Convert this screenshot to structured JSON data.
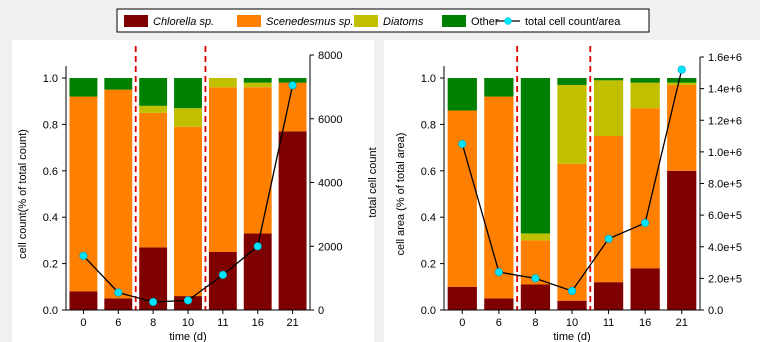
{
  "legend": [
    {
      "label": "Chlorella sp.",
      "color": "#7f0000",
      "italic": true,
      "kind": "box"
    },
    {
      "label": "Scenedesmus sp.",
      "color": "#ff8000",
      "italic": true,
      "kind": "box"
    },
    {
      "label": "Diatoms",
      "color": "#c0c000",
      "italic": true,
      "kind": "box"
    },
    {
      "label": "Other",
      "color": "#008000",
      "italic": false,
      "kind": "box"
    },
    {
      "label": "total cell count/area",
      "color": "#00e5ff",
      "italic": false,
      "kind": "line"
    }
  ],
  "chart_data": [
    {
      "type": "bar",
      "stacked": true,
      "categories": [
        "0",
        "6",
        "8",
        "10",
        "11",
        "16",
        "21"
      ],
      "xlabel": "time (d)",
      "ylabel": "cell count(% of total count)",
      "ylim": [
        0,
        1.0
      ],
      "yticks": [
        "0.0",
        "0.2",
        "0.4",
        "0.6",
        "0.8",
        "1.0"
      ],
      "series": [
        {
          "name": "Chlorella sp.",
          "color": "#7f0000",
          "values": [
            0.08,
            0.05,
            0.27,
            0.06,
            0.25,
            0.33,
            0.77
          ]
        },
        {
          "name": "Scenedesmus sp.",
          "color": "#ff8000",
          "values": [
            0.84,
            0.9,
            0.58,
            0.73,
            0.71,
            0.63,
            0.21
          ]
        },
        {
          "name": "Diatoms",
          "color": "#c0c000",
          "values": [
            0.0,
            0.0,
            0.03,
            0.08,
            0.04,
            0.02,
            0.0
          ]
        },
        {
          "name": "Other",
          "color": "#008000",
          "values": [
            0.08,
            0.05,
            0.12,
            0.13,
            0.0,
            0.02,
            0.02
          ]
        }
      ],
      "separators_after_index": [
        1,
        3
      ],
      "secondary": {
        "name": "total cell count/area",
        "ylabel": "total cell count",
        "ylim": [
          0,
          8000
        ],
        "yticks": [
          "0",
          "2000",
          "4000",
          "6000",
          "8000"
        ],
        "values": [
          1700,
          550,
          250,
          300,
          1100,
          2000,
          7050
        ]
      }
    },
    {
      "type": "bar",
      "stacked": true,
      "categories": [
        "0",
        "6",
        "8",
        "10",
        "11",
        "16",
        "21"
      ],
      "xlabel": "time (d)",
      "ylabel": "cell area (% of total area)",
      "ylim": [
        0,
        1.0
      ],
      "yticks": [
        "0.0",
        "0.2",
        "0.4",
        "0.6",
        "0.8",
        "1.0"
      ],
      "series": [
        {
          "name": "Chlorella sp.",
          "color": "#7f0000",
          "values": [
            0.1,
            0.05,
            0.11,
            0.04,
            0.12,
            0.18,
            0.6
          ]
        },
        {
          "name": "Scenedesmus sp.",
          "color": "#ff8000",
          "values": [
            0.76,
            0.87,
            0.19,
            0.59,
            0.63,
            0.69,
            0.37
          ]
        },
        {
          "name": "Diatoms",
          "color": "#c0c000",
          "values": [
            0.0,
            0.0,
            0.03,
            0.34,
            0.24,
            0.11,
            0.01
          ]
        },
        {
          "name": "Other",
          "color": "#008000",
          "values": [
            0.14,
            0.08,
            0.67,
            0.03,
            0.01,
            0.02,
            0.02
          ]
        }
      ],
      "separators_after_index": [
        1,
        3
      ],
      "secondary": {
        "name": "total cell count/area",
        "ylabel": "",
        "ylim": [
          0,
          1600000
        ],
        "yticks": [
          "0.0",
          "2.0e+5",
          "4.0e+5",
          "6.0e+5",
          "8.0e+5",
          "1.0e+6",
          "1.2e+6",
          "1.4e+6",
          "1.6e+6"
        ],
        "values": [
          1050000,
          240000,
          200000,
          120000,
          450000,
          550000,
          1520000
        ]
      }
    }
  ]
}
